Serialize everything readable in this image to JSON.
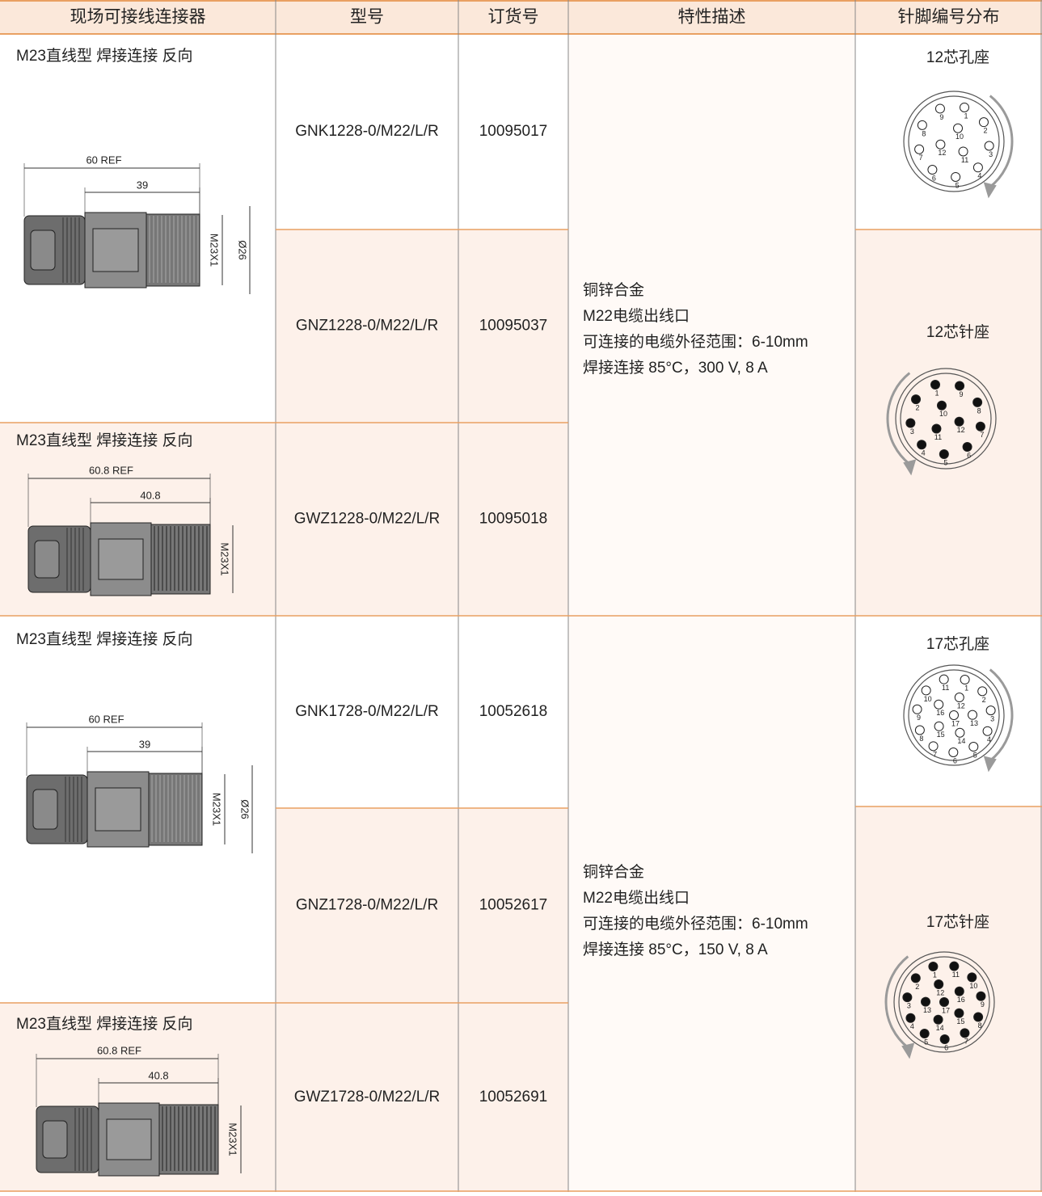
{
  "header": [
    "现场可接线连接器",
    "型号",
    "订货号",
    "特性描述",
    "针脚编号分布"
  ],
  "groups": [
    {
      "connectors": [
        {
          "title": "M23直线型  焊接连接 反向",
          "dimensions": [
            "60 REF",
            "39",
            "M23X1",
            "Ø26"
          ]
        },
        {
          "title": "M23直线型  焊接连接 反向",
          "dimensions": [
            "60.8 REF",
            "40.8",
            "M23X1"
          ]
        }
      ],
      "rows": [
        {
          "model": "GNK1228-0/M22/L/R",
          "order": "10095017"
        },
        {
          "model": "GNZ1228-0/M22/L/R",
          "order": "10095037"
        },
        {
          "model": "GWZ1228-0/M22/L/R",
          "order": "10095018"
        }
      ],
      "description": [
        "铜锌合金",
        "M22电缆出线口",
        "可连接的电缆外径范围：6-10mm",
        "焊接连接   85°C，300 V, 8 A"
      ],
      "pinouts": [
        {
          "title": "12芯孔座",
          "pins": [
            "1",
            "2",
            "3",
            "4",
            "5",
            "6",
            "7",
            "8",
            "9",
            "10",
            "11",
            "12"
          ]
        },
        {
          "title": "12芯针座",
          "pins": [
            "1",
            "2",
            "3",
            "4",
            "5",
            "6",
            "7",
            "8",
            "9",
            "10",
            "11",
            "12"
          ]
        }
      ]
    },
    {
      "connectors": [
        {
          "title": "M23直线型  焊接连接 反向",
          "dimensions": [
            "60 REF",
            "39",
            "M23X1",
            "Ø26"
          ]
        },
        {
          "title": "M23直线型  焊接连接 反向",
          "dimensions": [
            "60.8 REF",
            "40.8",
            "M23X1"
          ]
        }
      ],
      "rows": [
        {
          "model": "GNK1728-0/M22/L/R",
          "order": "10052618"
        },
        {
          "model": "GNZ1728-0/M22/L/R",
          "order": "10052617"
        },
        {
          "model": "GWZ1728-0/M22/L/R",
          "order": "10052691"
        }
      ],
      "description": [
        "铜锌合金",
        "M22电缆出线口",
        "可连接的电缆外径范围：6-10mm",
        "焊接连接   85°C，150 V, 8 A"
      ],
      "pinouts": [
        {
          "title": "17芯孔座",
          "pins": [
            "1",
            "2",
            "3",
            "4",
            "5",
            "6",
            "7",
            "8",
            "9",
            "10",
            "11",
            "12",
            "13",
            "14",
            "15",
            "16",
            "17"
          ]
        },
        {
          "title": "17芯针座",
          "pins": [
            "1",
            "2",
            "3",
            "4",
            "5",
            "6",
            "7",
            "8",
            "9",
            "10",
            "11",
            "12",
            "13",
            "14",
            "15",
            "16",
            "17"
          ]
        }
      ]
    }
  ]
}
